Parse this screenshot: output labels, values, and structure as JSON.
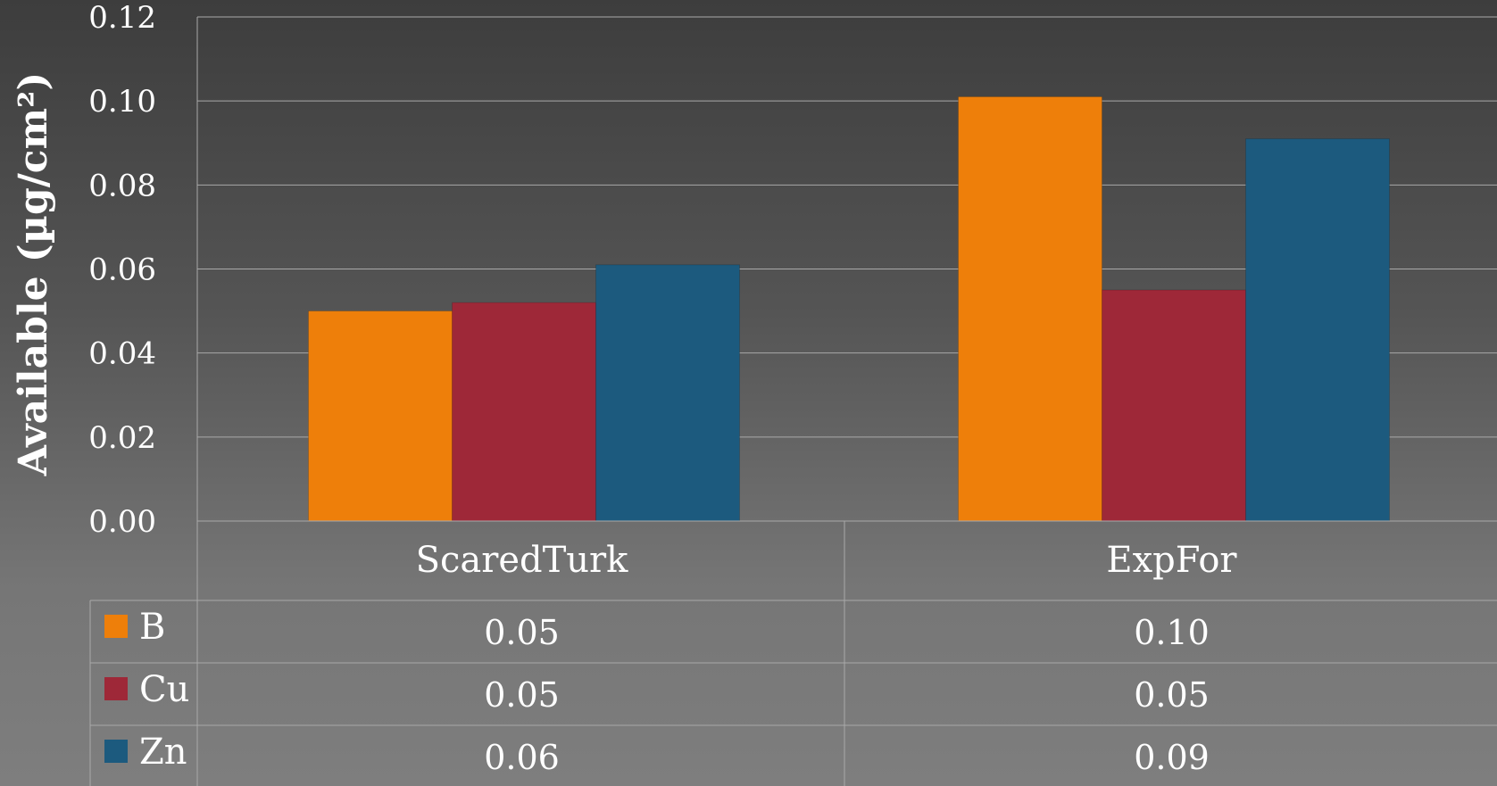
{
  "chart_data": {
    "type": "bar",
    "title": "",
    "xlabel": "",
    "ylabel": "Available (µg/cm²)",
    "ylim": [
      0,
      0.12
    ],
    "yticks": [
      "0.00",
      "0.02",
      "0.04",
      "0.06",
      "0.08",
      "0.10",
      "0.12"
    ],
    "ytick_values": [
      0,
      0.02,
      0.04,
      0.06,
      0.08,
      0.1,
      0.12
    ],
    "categories": [
      "ScaredTurk",
      "ExpFor"
    ],
    "grid": true,
    "legend": "data-table-left",
    "series": [
      {
        "name": "B",
        "color": "#ee7f0a",
        "values": [
          0.05,
          0.101
        ],
        "table_labels": [
          "0.05",
          "0.10"
        ]
      },
      {
        "name": "Cu",
        "color": "#9e2838",
        "values": [
          0.052,
          0.055
        ],
        "table_labels": [
          "0.05",
          "0.05"
        ]
      },
      {
        "name": "Zn",
        "color": "#1c5a7e",
        "values": [
          0.061,
          0.091
        ],
        "table_labels": [
          "0.06",
          "0.09"
        ]
      }
    ]
  }
}
